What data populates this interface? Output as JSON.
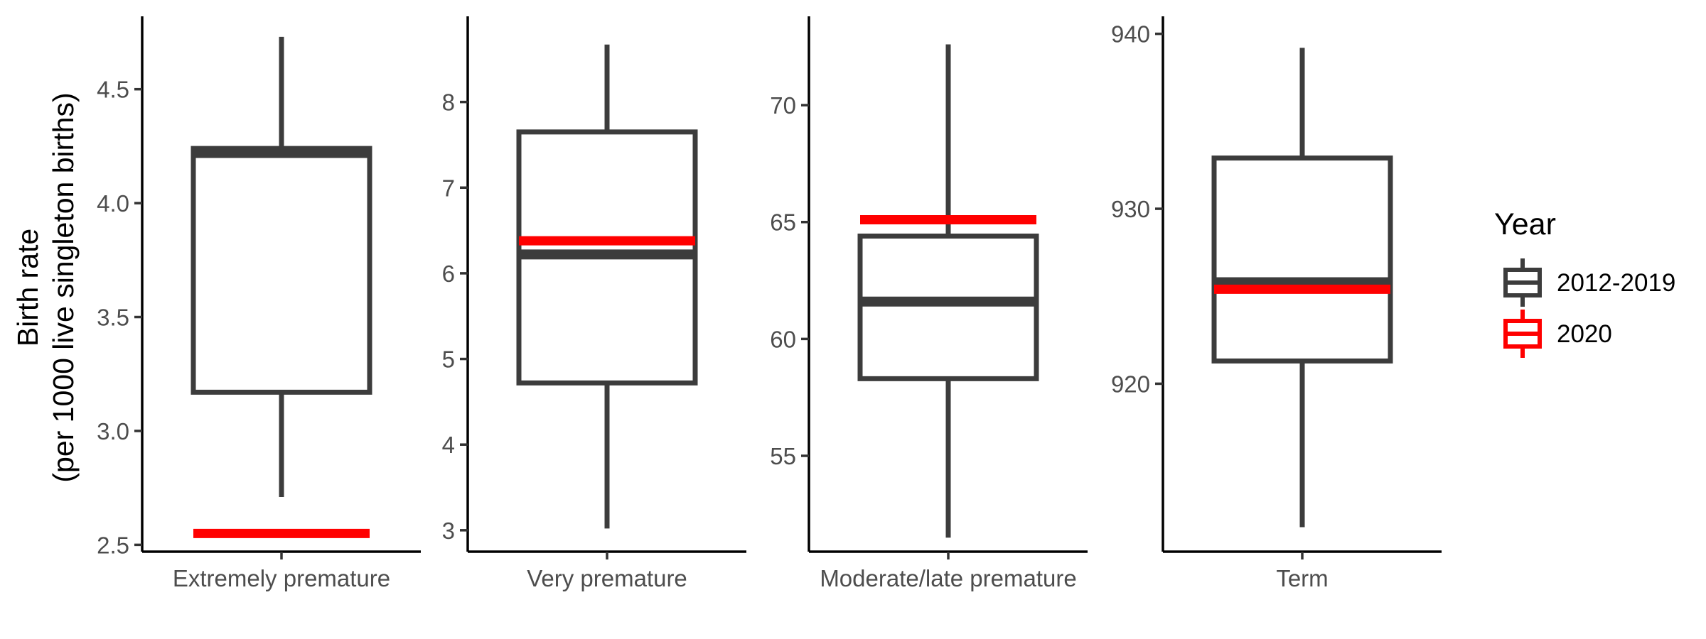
{
  "chart_data": {
    "type": "boxplot",
    "ylabel_line1": "Birth rate",
    "ylabel_line2": "(per 1000 live singleton births)",
    "legend": {
      "title": "Year",
      "placement": "right",
      "entries": [
        {
          "label": "2012-2019",
          "color": "#3c3c3c"
        },
        {
          "label": "2020",
          "color": "#ff0000"
        }
      ]
    },
    "colors": {
      "box": "#3c3c3c",
      "year2020": "#ff0000",
      "axis": "#000000",
      "tick_text": "#4d4d4d"
    },
    "panels": [
      {
        "category": "Extremely premature",
        "ylim": [
          2.47,
          4.82
        ],
        "yticks": [
          2.5,
          3.0,
          3.5,
          4.0,
          4.5
        ],
        "ytick_labels": [
          "2.5",
          "3.0",
          "3.5",
          "4.0",
          "4.5"
        ],
        "box_2012_2019": {
          "min": 2.71,
          "q1": 3.17,
          "median": 4.22,
          "q3": 4.24,
          "max": 4.73
        },
        "value_2020": 2.55
      },
      {
        "category": "Very premature",
        "ylim": [
          2.75,
          9.0
        ],
        "yticks": [
          3,
          4,
          5,
          6,
          7,
          8
        ],
        "ytick_labels": [
          "3",
          "4",
          "5",
          "6",
          "7",
          "8"
        ],
        "box_2012_2019": {
          "min": 3.02,
          "q1": 4.72,
          "median": 6.22,
          "q3": 7.65,
          "max": 8.67
        },
        "value_2020": 6.38
      },
      {
        "category": "Moderate/late premature",
        "ylim": [
          50.9,
          73.8
        ],
        "yticks": [
          55,
          60,
          65,
          70
        ],
        "ytick_labels": [
          "55",
          "60",
          "65",
          "70"
        ],
        "box_2012_2019": {
          "min": 51.5,
          "q1": 58.3,
          "median": 61.6,
          "q3": 64.4,
          "max": 72.6
        },
        "value_2020": 65.1
      },
      {
        "category": "Term",
        "ylim": [
          910.4,
          941.0
        ],
        "yticks": [
          920,
          930,
          940
        ],
        "ytick_labels": [
          "920",
          "930",
          "940"
        ],
        "box_2012_2019": {
          "min": 911.8,
          "q1": 921.3,
          "median": 925.8,
          "q3": 932.9,
          "max": 939.2
        },
        "value_2020": 925.4
      }
    ]
  }
}
